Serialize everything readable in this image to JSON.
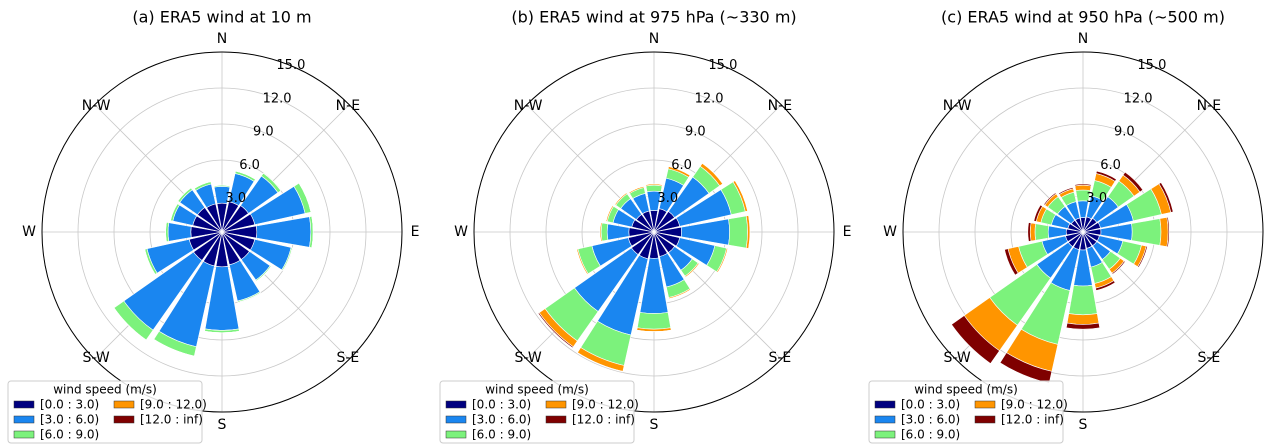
{
  "chart_data": [
    {
      "type": "windrose",
      "title": "(a) ERA5 wind at 10 m",
      "categories": [
        "N",
        null,
        "N-E",
        null,
        "E",
        null,
        "S-E",
        null,
        "S",
        null,
        "S-W",
        null,
        "W",
        null,
        "N-W",
        null
      ],
      "legend_title": "wind speed (m/s)",
      "grid": true,
      "ylim": [
        0,
        15
      ],
      "yticks": [
        {
          "value": 3,
          "label": "3.0"
        },
        {
          "value": 6,
          "label": "6.0"
        },
        {
          "value": 9,
          "label": "9.0"
        },
        {
          "value": 12,
          "label": "12.0"
        },
        {
          "value": 15,
          "label": "15.0"
        }
      ],
      "series": [
        {
          "name": "[0.0 : 3.0)",
          "color": "#00007f",
          "values": [
            2.4,
            2.6,
            2.7,
            2.8,
            2.9,
            2.8,
            2.8,
            2.8,
            2.9,
            2.9,
            2.9,
            2.8,
            2.6,
            2.5,
            2.5,
            2.4
          ]
        },
        {
          "name": "[3.0 : 6.0)",
          "color": "#1a86f0",
          "values": [
            1.4,
            2.4,
            3.0,
            4.3,
            4.5,
            3.1,
            2.1,
            3.1,
            5.3,
            6.9,
            7.1,
            3.6,
            1.9,
            1.7,
            1.8,
            1.7
          ]
        },
        {
          "name": "[6.0 : 9.0)",
          "color": "#7cf27c",
          "values": [
            0.1,
            0.2,
            0.3,
            0.5,
            0.2,
            0.1,
            0.1,
            0.1,
            0.2,
            0.8,
            1.0,
            0.2,
            0.2,
            0.2,
            0.2,
            0.2
          ]
        },
        {
          "name": "[9.0 : 12.0)",
          "color": "#ff9500",
          "values": [
            0,
            0,
            0,
            0,
            0,
            0,
            0,
            0,
            0,
            0,
            0,
            0,
            0,
            0,
            0,
            0
          ]
        },
        {
          "name": "[12.0 : inf)",
          "color": "#7f0000",
          "values": [
            0,
            0,
            0,
            0,
            0,
            0,
            0,
            0,
            0,
            0,
            0,
            0,
            0,
            0,
            0,
            0
          ]
        }
      ]
    },
    {
      "type": "windrose",
      "title": "(b) ERA5 wind at 975 hPa (~330 m)",
      "categories": [
        "N",
        null,
        "N-E",
        null,
        "E",
        null,
        "S-E",
        null,
        "S",
        null,
        "S-W",
        null,
        "W",
        null,
        "N-W",
        null
      ],
      "legend_title": "wind speed (m/s)",
      "grid": true,
      "ylim": [
        0,
        15
      ],
      "yticks": [
        {
          "value": 3,
          "label": "3.0"
        },
        {
          "value": 6,
          "label": "6.0"
        },
        {
          "value": 9,
          "label": "9.0"
        },
        {
          "value": 12,
          "label": "12.0"
        },
        {
          "value": 15,
          "label": "15.0"
        }
      ],
      "series": [
        {
          "name": "[0.0 : 3.0)",
          "color": "#00007f",
          "values": [
            1.8,
            2.0,
            2.1,
            2.2,
            2.3,
            2.2,
            2.1,
            2.1,
            2.2,
            2.3,
            2.3,
            2.2,
            2.1,
            1.9,
            1.8,
            1.8
          ]
        },
        {
          "name": "[3.0 : 6.0)",
          "color": "#1a86f0",
          "values": [
            1.6,
            2.6,
            3.5,
            4.4,
            4.0,
            3.0,
            1.8,
            2.6,
            4.6,
            6.5,
            5.8,
            3.1,
            1.8,
            1.6,
            1.6,
            1.5
          ]
        },
        {
          "name": "[6.0 : 9.0)",
          "color": "#7cf27c",
          "values": [
            0.5,
            0.8,
            1.1,
            1.2,
            1.5,
            1.0,
            0.6,
            0.9,
            1.3,
            2.6,
            3.0,
            1.2,
            0.5,
            0.5,
            0.5,
            0.5
          ]
        },
        {
          "name": "[9.0 : 12.0)",
          "color": "#ff9500",
          "values": [
            0.1,
            0.2,
            0.3,
            0.2,
            0.2,
            0.1,
            0.1,
            0.1,
            0.2,
            0.5,
            0.6,
            0.1,
            0.1,
            0.1,
            0.1,
            0.1
          ]
        },
        {
          "name": "[12.0 : inf)",
          "color": "#7f0000",
          "values": [
            0,
            0,
            0,
            0,
            0,
            0,
            0,
            0,
            0,
            0.05,
            0.1,
            0,
            0,
            0,
            0,
            0
          ]
        }
      ]
    },
    {
      "type": "windrose",
      "title": "(c) ERA5 wind at 950 hPa (~500 m)",
      "categories": [
        "N",
        null,
        "N-E",
        null,
        "E",
        null,
        "S-E",
        null,
        "S",
        null,
        "S-W",
        null,
        "W",
        null,
        "N-W",
        null
      ],
      "legend_title": "wind speed (m/s)",
      "grid": true,
      "ylim": [
        0,
        15
      ],
      "yticks": [
        {
          "value": 3,
          "label": "3.0"
        },
        {
          "value": 6,
          "label": "6.0"
        },
        {
          "value": 9,
          "label": "9.0"
        },
        {
          "value": 12,
          "label": "12.0"
        },
        {
          "value": 15,
          "label": "15.0"
        }
      ],
      "series": [
        {
          "name": "[0.0 : 3.0)",
          "color": "#00007f",
          "values": [
            1.2,
            1.3,
            1.4,
            1.5,
            1.5,
            1.4,
            1.4,
            1.4,
            1.5,
            1.5,
            1.5,
            1.5,
            1.4,
            1.3,
            1.2,
            1.2
          ]
        },
        {
          "name": "[3.0 : 6.0)",
          "color": "#1a86f0",
          "values": [
            1.4,
            1.8,
            2.2,
            2.8,
            2.6,
            2.0,
            1.4,
            1.6,
            3.0,
            3.5,
            3.2,
            2.0,
            1.5,
            1.4,
            1.4,
            1.4
          ]
        },
        {
          "name": "[6.0 : 9.0)",
          "color": "#7cf27c",
          "values": [
            0.9,
            1.3,
            1.6,
            2.4,
            2.4,
            1.6,
            1.0,
            1.4,
            2.4,
            4.6,
            4.8,
            2.0,
            1.1,
            0.9,
            1.0,
            0.8
          ]
        },
        {
          "name": "[9.0 : 12.0)",
          "color": "#ff9500",
          "values": [
            0.4,
            0.6,
            0.6,
            0.8,
            0.6,
            0.4,
            0.4,
            0.4,
            0.8,
            2.3,
            2.6,
            0.9,
            0.4,
            0.4,
            0.3,
            0.3
          ]
        },
        {
          "name": "[12.0 : inf)",
          "color": "#7f0000",
          "values": [
            0.1,
            0.2,
            0.3,
            0.2,
            0.1,
            0.1,
            0.1,
            0.2,
            0.4,
            1.0,
            1.3,
            0.3,
            0.2,
            0.2,
            0.1,
            0.1
          ]
        }
      ]
    }
  ]
}
